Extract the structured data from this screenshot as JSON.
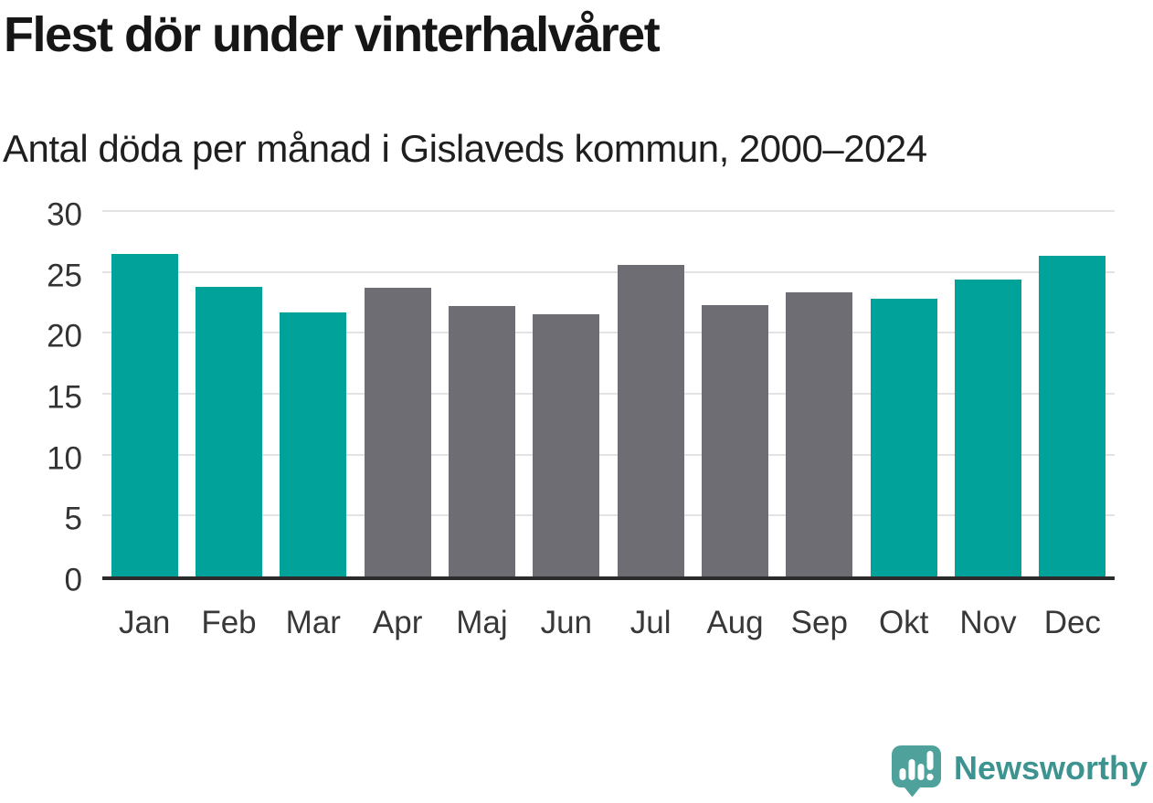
{
  "page": {
    "background": "#ffffff"
  },
  "chart_data": {
    "type": "bar",
    "title": "Flest dör under vinterhalvåret",
    "subtitle": "Antal döda per månad i Gislaveds kommun, 2000–2024",
    "categories": [
      "Jan",
      "Feb",
      "Mar",
      "Apr",
      "Maj",
      "Jun",
      "Jul",
      "Aug",
      "Sep",
      "Okt",
      "Nov",
      "Dec"
    ],
    "values": [
      26.5,
      23.8,
      21.7,
      23.7,
      22.2,
      21.5,
      25.6,
      22.3,
      23.3,
      22.8,
      24.4,
      26.3
    ],
    "bar_colors": [
      "#00A299",
      "#00A299",
      "#00A299",
      "#6E6D73",
      "#6E6D73",
      "#6E6D73",
      "#6E6D73",
      "#6E6D73",
      "#6E6D73",
      "#00A299",
      "#00A299",
      "#00A299"
    ],
    "highlight_color": "#00A299",
    "base_color": "#6E6D73",
    "xlabel": "",
    "ylabel": "",
    "ylim": [
      0,
      30
    ],
    "yticks": [
      0,
      5,
      10,
      15,
      20,
      25,
      30
    ],
    "grid": "horizontal",
    "legend": "none"
  },
  "footer": {
    "brand": "Newsworthy",
    "brand_text_color": "#3D938F",
    "logo_bubble_color": "#4FA19C"
  }
}
